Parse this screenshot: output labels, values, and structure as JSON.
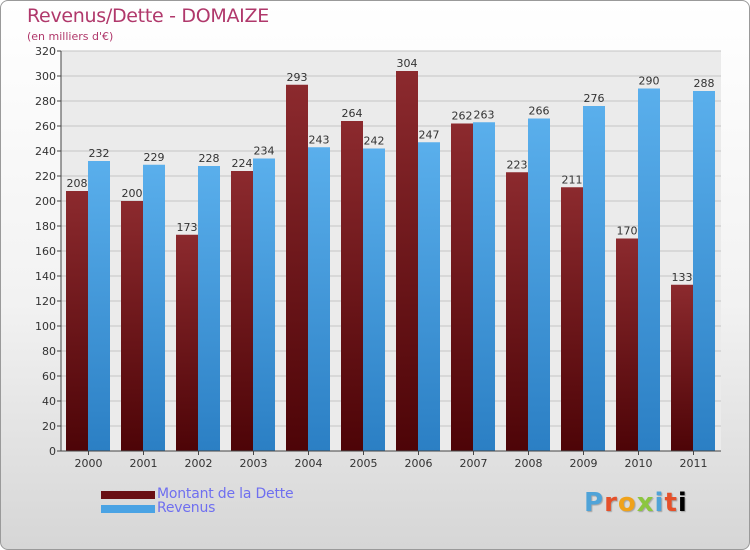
{
  "header": {
    "title": "Revenus/Dette - DOMAIZE",
    "subtitle": "(en milliers d'€)"
  },
  "chart_data": {
    "type": "bar",
    "categories": [
      "2000",
      "2001",
      "2002",
      "2003",
      "2004",
      "2005",
      "2006",
      "2007",
      "2008",
      "2009",
      "2010",
      "2011"
    ],
    "series": [
      {
        "name": "Montant de la Dette",
        "color": "#7a1e22",
        "values": [
          208,
          200,
          173,
          224,
          293,
          264,
          304,
          262,
          223,
          211,
          170,
          133
        ]
      },
      {
        "name": "Revenus",
        "color": "#4aa3e4",
        "values": [
          232,
          229,
          228,
          234,
          243,
          242,
          247,
          263,
          266,
          276,
          290,
          288
        ]
      }
    ],
    "ylim": [
      0,
      320
    ],
    "yticks": [
      0,
      20,
      40,
      60,
      80,
      100,
      120,
      140,
      160,
      180,
      200,
      220,
      240,
      260,
      280,
      300,
      320
    ],
    "grid": true,
    "legend": "bottom-left"
  },
  "legend": {
    "items": [
      {
        "label": "Montant de la Dette",
        "color": "#7a1e22"
      },
      {
        "label": "Revenus",
        "color": "#4aa3e4"
      }
    ]
  },
  "logo": {
    "letters": [
      "P",
      "r",
      "o",
      "x",
      "i",
      "t",
      "i"
    ]
  }
}
